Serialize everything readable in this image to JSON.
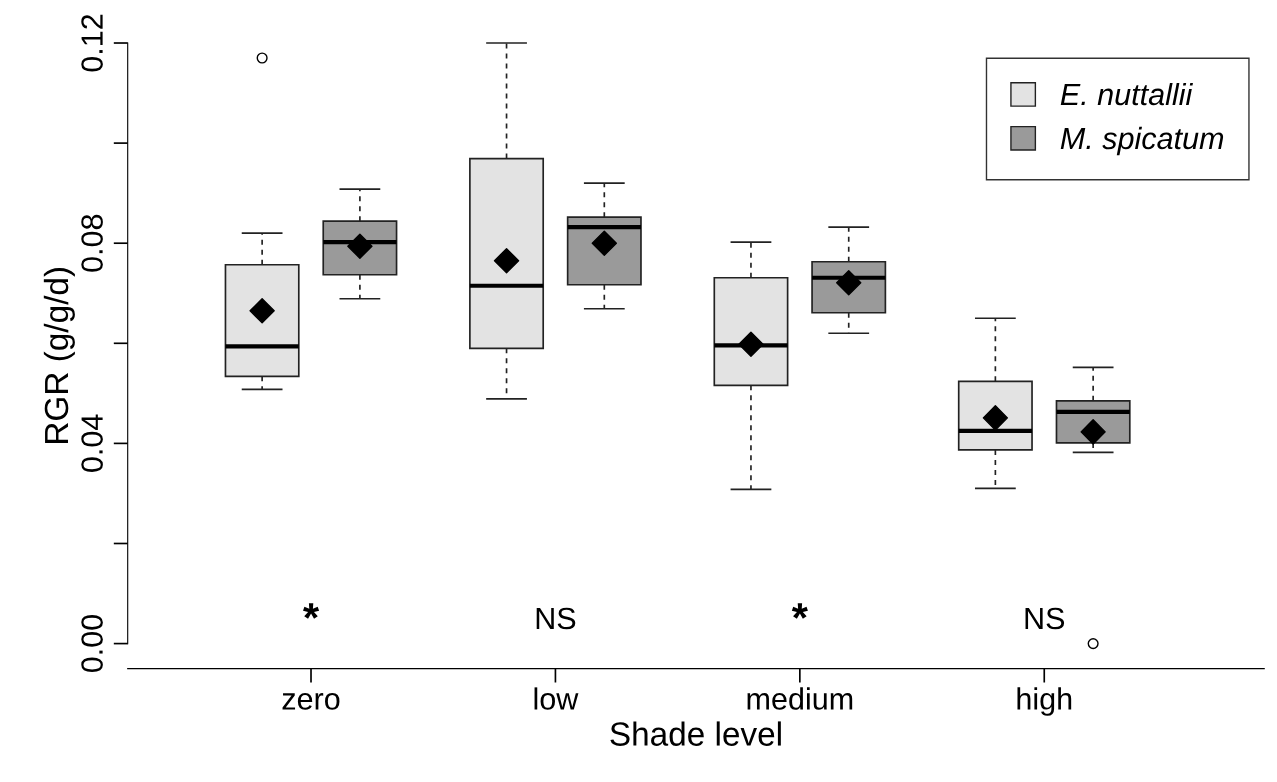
{
  "chart_data": {
    "type": "box",
    "xlabel": "Shade level",
    "ylabel": "RGR (g/g/d)",
    "categories": [
      "zero",
      "low",
      "medium",
      "high"
    ],
    "ylim": [
      -0.005,
      0.12
    ],
    "yticks": [
      {
        "value": 0,
        "label": "0.00"
      },
      {
        "value": 0.02,
        "label": null
      },
      {
        "value": 0.04,
        "label": "0.04"
      },
      {
        "value": 0.06,
        "label": null
      },
      {
        "value": 0.08,
        "label": "0.08"
      },
      {
        "value": 0.1,
        "label": null
      },
      {
        "value": 0.12,
        "label": "0.12"
      }
    ],
    "legend": "top right",
    "grid": false,
    "marker": "diamond",
    "series": [
      {
        "name": "E. nuttallii",
        "color": "#e3e3e3",
        "boxes": [
          {
            "low": 0.0508,
            "q1": 0.0534,
            "median": 0.0594,
            "q3": 0.0757,
            "high": 0.082,
            "mean": 0.0665,
            "outliers": [
              0.117
            ]
          },
          {
            "low": 0.0489,
            "q1": 0.059,
            "median": 0.0715,
            "q3": 0.0969,
            "high": 0.12,
            "mean": 0.0765
          },
          {
            "low": 0.0308,
            "q1": 0.0516,
            "median": 0.0596,
            "q3": 0.0731,
            "high": 0.0802,
            "mean": 0.0598
          },
          {
            "low": 0.031,
            "q1": 0.0387,
            "median": 0.0425,
            "q3": 0.0524,
            "high": 0.065,
            "mean": 0.0451
          }
        ]
      },
      {
        "name": "M. spicatum",
        "color": "#9a9a9a",
        "boxes": [
          {
            "low": 0.0689,
            "q1": 0.0737,
            "median": 0.0802,
            "q3": 0.0844,
            "high": 0.0908,
            "mean": 0.0794
          },
          {
            "low": 0.0669,
            "q1": 0.0717,
            "median": 0.0832,
            "q3": 0.0852,
            "high": 0.092,
            "mean": 0.08
          },
          {
            "low": 0.062,
            "q1": 0.0661,
            "median": 0.0731,
            "q3": 0.0763,
            "high": 0.0832,
            "mean": 0.0721
          },
          {
            "low": 0.0382,
            "q1": 0.0401,
            "median": 0.0463,
            "q3": 0.0485,
            "high": 0.0552,
            "mean": 0.0423,
            "outliers": [
              0.0
            ]
          }
        ]
      }
    ],
    "annotations": [
      "*",
      "NS",
      "*",
      "NS"
    ]
  }
}
